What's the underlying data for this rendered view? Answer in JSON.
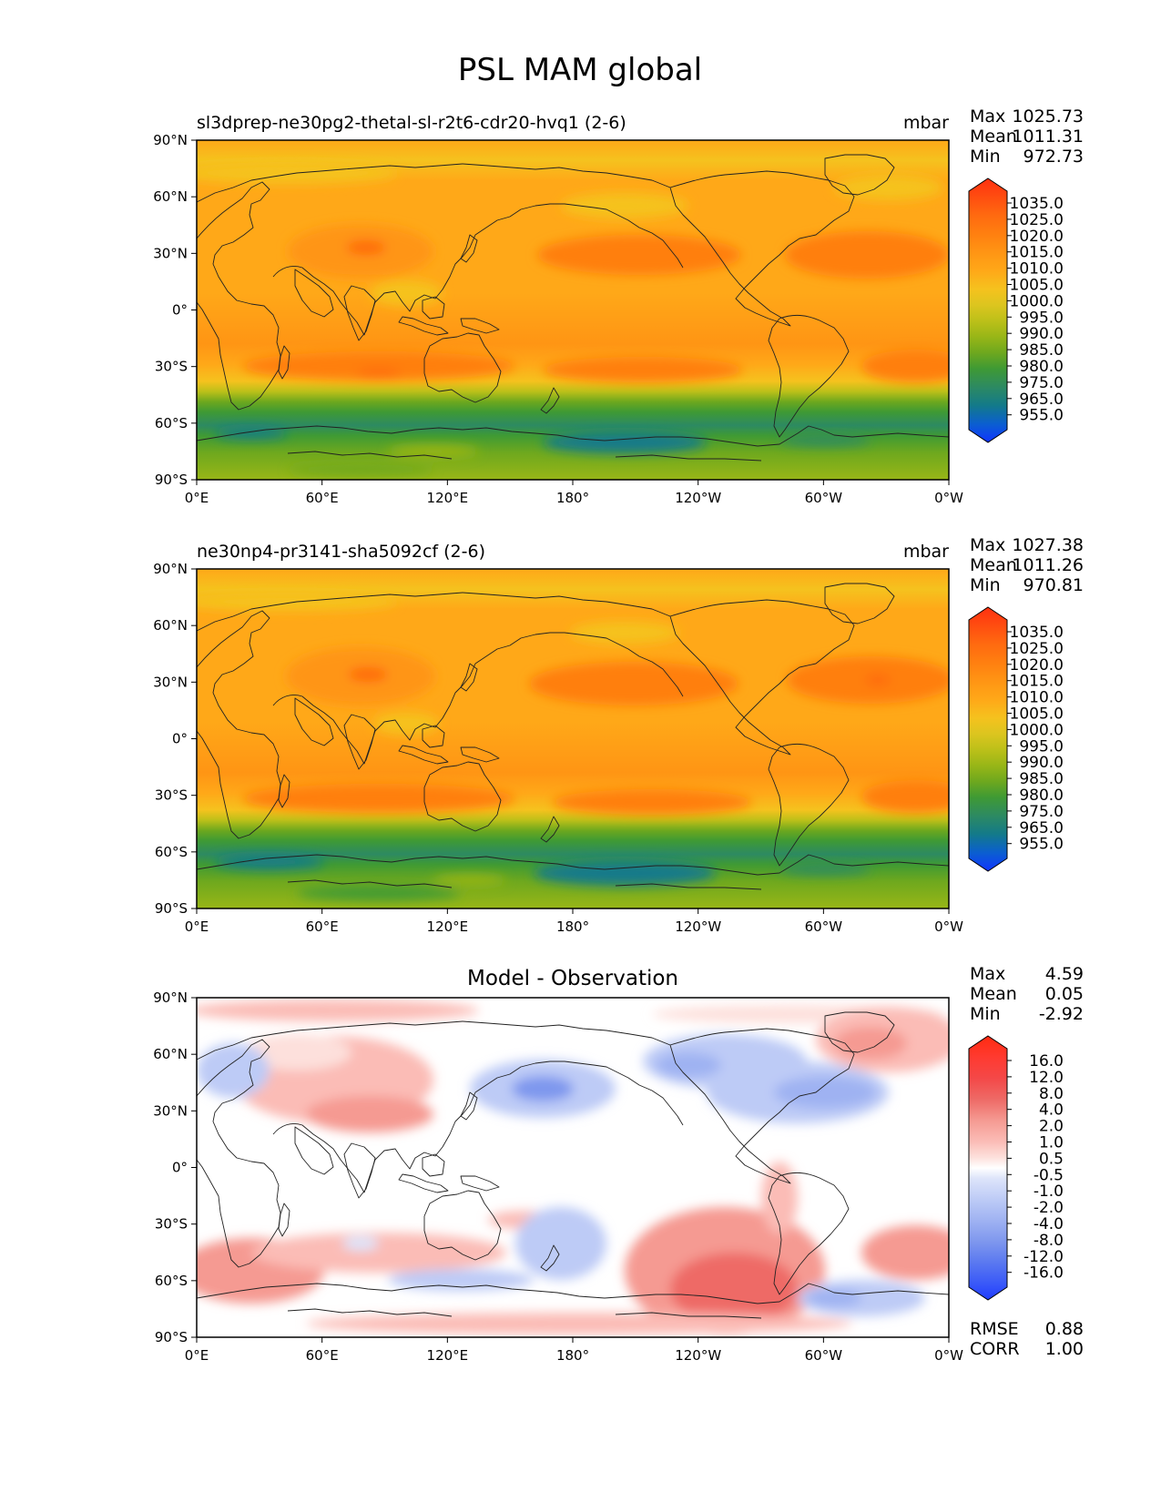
{
  "page_title": "PSL MAM global",
  "map_ticks": {
    "lat_labels": [
      "90°N",
      "60°N",
      "30°N",
      "0°",
      "30°S",
      "60°S",
      "90°S"
    ],
    "lon_labels": [
      "0°E",
      "60°E",
      "120°E",
      "180°",
      "120°W",
      "60°W",
      "0°W"
    ]
  },
  "panels": [
    {
      "id": "test",
      "left_title": "sl3dprep-ne30pg2-thetal-sl-r2t6-cdr20-hvq1 (2-6)",
      "right_title": "mbar",
      "center_title": "",
      "stats": [
        {
          "label": "Max",
          "value": "1025.73"
        },
        {
          "label": "Mean",
          "value": "1011.31"
        },
        {
          "label": "Min",
          "value": "972.73"
        }
      ],
      "colorbar_levels": [
        "1035.0",
        "1025.0",
        "1020.0",
        "1015.0",
        "1010.0",
        "1005.0",
        "1000.0",
        "995.0",
        "990.0",
        "985.0",
        "980.0",
        "975.0",
        "965.0",
        "955.0"
      ]
    },
    {
      "id": "ref",
      "left_title": "ne30np4-pr3141-sha5092cf (2-6)",
      "right_title": "mbar",
      "center_title": "",
      "stats": [
        {
          "label": "Max",
          "value": "1027.38"
        },
        {
          "label": "Mean",
          "value": "1011.26"
        },
        {
          "label": "Min",
          "value": "970.81"
        }
      ],
      "colorbar_levels": [
        "1035.0",
        "1025.0",
        "1020.0",
        "1015.0",
        "1010.0",
        "1005.0",
        "1000.0",
        "995.0",
        "990.0",
        "985.0",
        "980.0",
        "975.0",
        "965.0",
        "955.0"
      ]
    },
    {
      "id": "diff",
      "left_title": "",
      "right_title": "",
      "center_title": "Model - Observation",
      "stats": [
        {
          "label": "Max",
          "value": "4.59"
        },
        {
          "label": "Mean",
          "value": "0.05"
        },
        {
          "label": "Min",
          "value": "-2.92"
        }
      ],
      "colorbar_levels": [
        "16.0",
        "12.0",
        "8.0",
        "4.0",
        "2.0",
        "1.0",
        "0.5",
        "-0.5",
        "-1.0",
        "-2.0",
        "-4.0",
        "-8.0",
        "-12.0",
        "-16.0"
      ],
      "extra_stats": [
        {
          "label": "RMSE",
          "value": "0.88"
        },
        {
          "label": "CORR",
          "value": "1.00"
        }
      ]
    }
  ],
  "colors": {
    "psl_bins_top_to_bottom": [
      "#ff3010",
      "#ff4d10",
      "#ff6a10",
      "#ff7f10",
      "#ff9514",
      "#ffa818",
      "#f5c21e",
      "#dcc51f",
      "#bcc019",
      "#98b617",
      "#6ea81e",
      "#3f9a34",
      "#2d8a62",
      "#137a8a",
      "#0b5fd0",
      "#1035ff"
    ],
    "diff_bins_top_to_bottom": [
      "#ff2a10",
      "#ff3a30",
      "#f44848",
      "#ee6a66",
      "#f59a92",
      "#fbbcb6",
      "#fde0dc",
      "#ffffff",
      "#ffffff",
      "#dde4fa",
      "#bdcbf6",
      "#9fb2f2",
      "#7e97ee",
      "#5a78f0",
      "#3958f8",
      "#1f3cff"
    ]
  }
}
